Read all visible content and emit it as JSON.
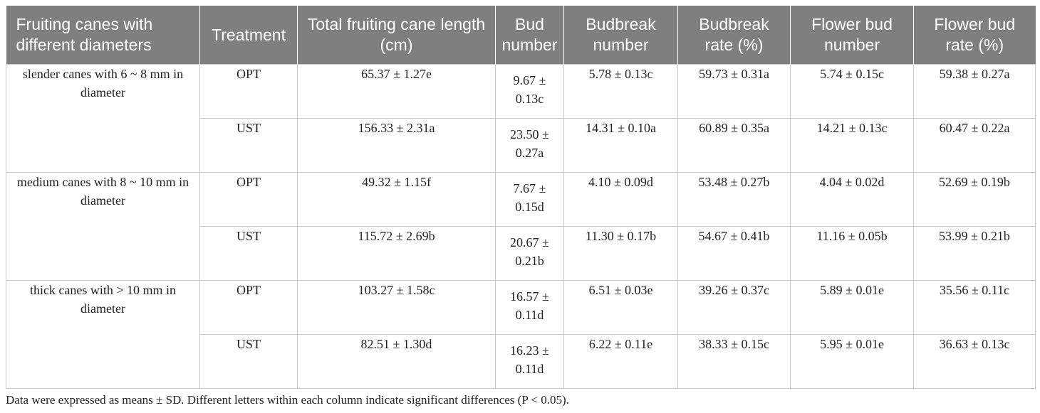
{
  "headers": [
    "Fruiting canes with different diameters",
    "Treatment",
    "Total fruiting cane length (cm)",
    "Bud number",
    "Budbreak number",
    "Budbreak rate (%)",
    "Flower bud number",
    "Flower bud rate (%)"
  ],
  "groups": [
    {
      "label": "slender canes with 6 ~ 8 mm in diameter",
      "rows": [
        {
          "treatment": "OPT",
          "length": "65.37 ± 1.27e",
          "bud": "9.67 ± 0.13c",
          "budbreak_number": "5.78 ± 0.13c",
          "budbreak_rate": "59.73 ± 0.31a",
          "flower_bud_number": "5.74 ± 0.15c",
          "flower_bud_rate": "59.38 ± 0.27a"
        },
        {
          "treatment": "UST",
          "length": "156.33 ± 2.31a",
          "bud": "23.50 ± 0.27a",
          "budbreak_number": "14.31 ± 0.10a",
          "budbreak_rate": "60.89 ± 0.35a",
          "flower_bud_number": "14.21 ± 0.13c",
          "flower_bud_rate": "60.47 ± 0.22a"
        }
      ]
    },
    {
      "label": "medium canes with 8 ~ 10 mm in diameter",
      "rows": [
        {
          "treatment": "OPT",
          "length": "49.32 ± 1.15f",
          "bud": "7.67 ± 0.15d",
          "budbreak_number": "4.10 ± 0.09d",
          "budbreak_rate": "53.48 ± 0.27b",
          "flower_bud_number": "4.04 ± 0.02d",
          "flower_bud_rate": "52.69 ± 0.19b"
        },
        {
          "treatment": "UST",
          "length": "115.72 ± 2.69b",
          "bud": "20.67 ± 0.21b",
          "budbreak_number": "11.30 ± 0.17b",
          "budbreak_rate": "54.67 ± 0.41b",
          "flower_bud_number": "11.16 ± 0.05b",
          "flower_bud_rate": "53.99 ± 0.21b"
        }
      ]
    },
    {
      "label": "thick canes with > 10 mm in diameter",
      "rows": [
        {
          "treatment": "OPT",
          "length": "103.27 ± 1.58c",
          "bud": "16.57 ± 0.11d",
          "budbreak_number": "6.51 ± 0.03e",
          "budbreak_rate": "39.26 ± 0.37c",
          "flower_bud_number": "5.89 ± 0.01e",
          "flower_bud_rate": "35.56 ± 0.11c"
        },
        {
          "treatment": "UST",
          "length": "82.51 ± 1.30d",
          "bud": "16.23 ± 0.11d",
          "budbreak_number": "6.22 ± 0.11e",
          "budbreak_rate": "38.33 ± 0.15c",
          "flower_bud_number": "5.95 ± 0.01e",
          "flower_bud_rate": "36.63 ± 0.13c"
        }
      ]
    }
  ],
  "footnote": "Data were expressed as means  ± SD. Different letters within each column indicate significant differences (P < 0.05)."
}
